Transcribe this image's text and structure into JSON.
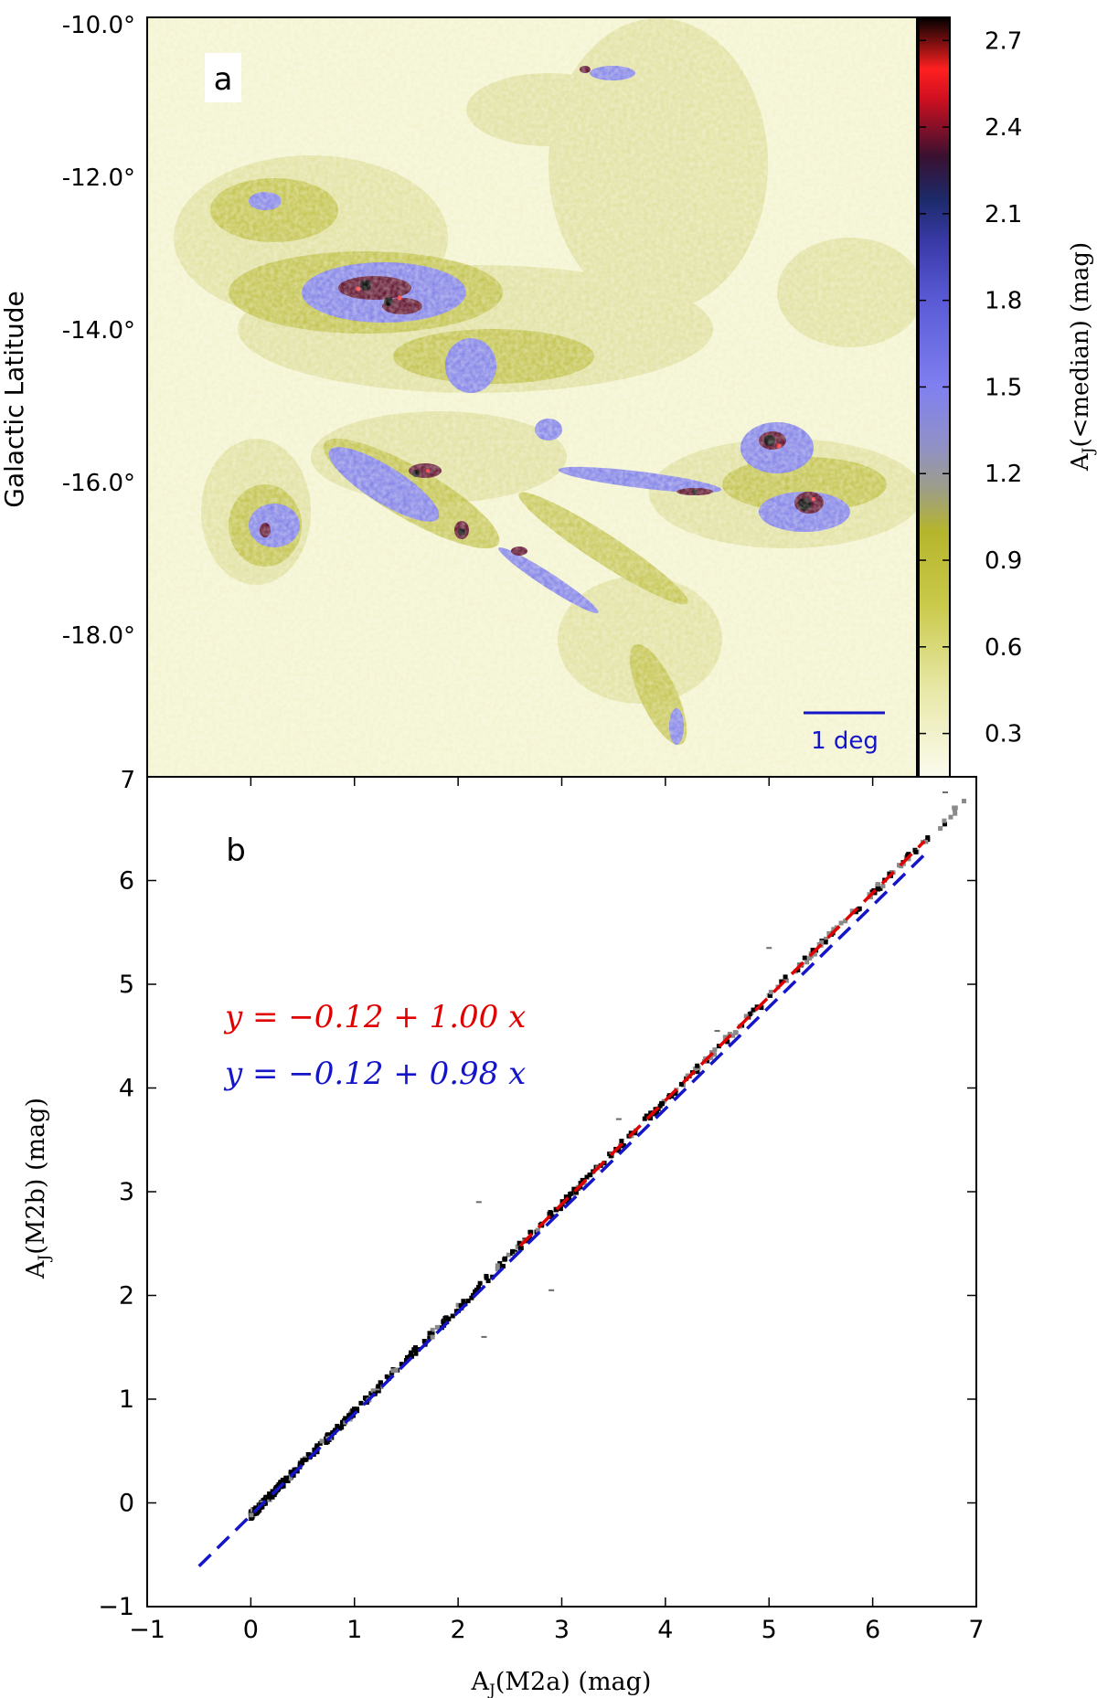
{
  "panel_a": {
    "label": "a",
    "ylabel": "Galactic Latitude",
    "lat_ticks": [
      "-10.0°",
      "-12.0°",
      "-14.0°",
      "-16.0°",
      "-18.0°"
    ],
    "corner_tick": "7",
    "scalebar_label": "1 deg",
    "colorbar": {
      "label": "A_J (<median) (mag)",
      "label_main": "A",
      "label_sub": "J",
      "label_rest": "(<median)  (mag)",
      "ticks": [
        "2.7",
        "2.4",
        "2.1",
        "1.8",
        "1.5",
        "1.2",
        "0.9",
        "0.6",
        "0.3"
      ],
      "range": [
        0.15,
        2.78
      ],
      "stops": [
        {
          "v": 0.15,
          "color": "#fbfbef"
        },
        {
          "v": 0.45,
          "color": "#e8e8a8"
        },
        {
          "v": 0.75,
          "color": "#c9c94a"
        },
        {
          "v": 1.0,
          "color": "#b5b52c"
        },
        {
          "v": 1.15,
          "color": "#9d9d8a"
        },
        {
          "v": 1.3,
          "color": "#9090c8"
        },
        {
          "v": 1.5,
          "color": "#8080f0"
        },
        {
          "v": 1.8,
          "color": "#5a5ad6"
        },
        {
          "v": 2.0,
          "color": "#3a3aa8"
        },
        {
          "v": 2.15,
          "color": "#1c2a6a"
        },
        {
          "v": 2.3,
          "color": "#3a1030"
        },
        {
          "v": 2.5,
          "color": "#d01020"
        },
        {
          "v": 2.6,
          "color": "#ff2020"
        },
        {
          "v": 2.78,
          "color": "#000000"
        }
      ]
    }
  },
  "panel_b": {
    "label": "b",
    "xlabel_main": "A",
    "xlabel_sub": "J",
    "xlabel_rest": "(M2a)  (mag)",
    "ylabel_main": "A",
    "ylabel_sub": "J",
    "ylabel_rest": "(M2b)  (mag)",
    "x_ticks": [
      "−1",
      "0",
      "1",
      "2",
      "3",
      "4",
      "5",
      "6",
      "7"
    ],
    "y_ticks": [
      "−1",
      "0",
      "1",
      "2",
      "3",
      "4",
      "5",
      "6",
      "7"
    ],
    "fit_red": "y = −0.12 + 1.00 x",
    "fit_blue": "y = −0.12 + 0.98 x"
  },
  "chart_data": [
    {
      "type": "heatmap",
      "title": "",
      "panel": "a",
      "ylabel": "Galactic Latitude",
      "y_ticks": [
        "-10.0°",
        "-12.0°",
        "-14.0°",
        "-16.0°",
        "-18.0°"
      ],
      "colorbar_label": "A_J (<median) (mag)",
      "colorbar_ticks": [
        2.7,
        2.4,
        2.1,
        1.8,
        1.5,
        1.2,
        0.9,
        0.6,
        0.3
      ],
      "colorbar_range": [
        0.15,
        2.78
      ],
      "colors": {
        "low": "#fbfbef",
        "mid": "#b5b52c",
        "blue": "#8080f0",
        "high_red": "#ff2020",
        "max": "#000000"
      }
    },
    {
      "type": "scatter",
      "panel": "b",
      "xlabel": "A_J(M2a) (mag)",
      "ylabel": "A_J(M2b) (mag)",
      "xlim": [
        -1,
        7
      ],
      "ylim": [
        -1,
        7
      ],
      "grid": false,
      "scatter_trend": {
        "x_range": [
          0.0,
          6.9
        ],
        "intercept": -0.12,
        "slope": 1.0
      },
      "outliers": [
        {
          "x": 2.2,
          "y": 2.9
        },
        {
          "x": 2.9,
          "y": 2.05
        },
        {
          "x": 2.25,
          "y": 1.6
        },
        {
          "x": 5.0,
          "y": 5.35
        },
        {
          "x": 3.55,
          "y": 3.7
        },
        {
          "x": 4.5,
          "y": 4.55
        },
        {
          "x": 5.3,
          "y": 5.2
        },
        {
          "x": 6.7,
          "y": 6.85
        }
      ],
      "series": [
        {
          "name": "y = −0.12 + 1.00 x",
          "type": "line",
          "style": "dashed",
          "color": "#e00000",
          "intercept": -0.12,
          "slope": 1.0,
          "x": [
            2.6,
            6.5
          ]
        },
        {
          "name": "y = −0.12 + 0.98 x",
          "type": "line",
          "style": "dashed",
          "color": "#1414c8",
          "intercept": -0.12,
          "slope": 0.98,
          "x": [
            -0.5,
            6.55
          ]
        }
      ]
    }
  ]
}
